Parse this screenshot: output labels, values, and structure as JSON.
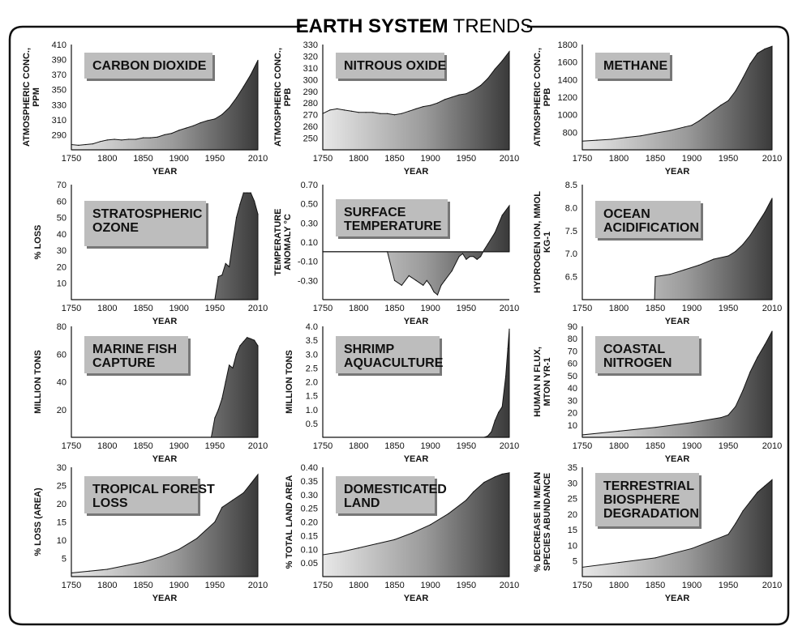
{
  "title_bold": "EARTH SYSTEM",
  "title_light": "TRENDS",
  "colors": {
    "fill_light": "#e8e8e8",
    "fill_dark": "#3a3a3a",
    "label_box": "#bdbdbd",
    "frame": "#111111"
  },
  "chart_data": [
    {
      "id": "co2",
      "type": "area",
      "title": [
        "CARBON DIOXIDE"
      ],
      "ylabel": [
        "ATMOSPHERIC CONC.,",
        "PPM"
      ],
      "xlabel": "YEAR",
      "xlim": [
        1750,
        2010
      ],
      "xticks": [
        1750,
        1800,
        1850,
        1900,
        1950,
        2010
      ],
      "ylim": [
        270,
        410
      ],
      "yticks": [
        290,
        310,
        330,
        350,
        370,
        390,
        410
      ],
      "x": [
        1750,
        1760,
        1770,
        1780,
        1790,
        1800,
        1810,
        1820,
        1830,
        1840,
        1850,
        1860,
        1870,
        1880,
        1890,
        1900,
        1910,
        1920,
        1930,
        1940,
        1950,
        1960,
        1970,
        1980,
        1990,
        2000,
        2010
      ],
      "y": [
        277,
        276,
        277,
        278,
        281,
        283,
        284,
        283,
        284,
        284,
        286,
        286,
        287,
        290,
        292,
        296,
        299,
        302,
        306,
        309,
        311,
        317,
        326,
        339,
        354,
        370,
        389
      ]
    },
    {
      "id": "n2o",
      "type": "area",
      "title": [
        "NITROUS OXIDE"
      ],
      "ylabel": [
        "ATMOSPHERIC CONC.,",
        "PPB"
      ],
      "xlabel": "YEAR",
      "xlim": [
        1750,
        2010
      ],
      "xticks": [
        1750,
        1800,
        1850,
        1900,
        1950,
        2010
      ],
      "ylim": [
        240,
        330
      ],
      "yticks": [
        250,
        260,
        270,
        280,
        290,
        300,
        310,
        320,
        330
      ],
      "x": [
        1750,
        1760,
        1770,
        1780,
        1790,
        1800,
        1810,
        1820,
        1830,
        1840,
        1850,
        1860,
        1870,
        1880,
        1890,
        1900,
        1910,
        1920,
        1930,
        1940,
        1950,
        1960,
        1970,
        1980,
        1990,
        2000,
        2010
      ],
      "y": [
        271,
        274,
        275,
        274,
        273,
        272,
        272,
        272,
        271,
        271,
        270,
        271,
        273,
        275,
        277,
        278,
        280,
        283,
        285,
        287,
        288,
        291,
        295,
        301,
        309,
        316,
        324
      ]
    },
    {
      "id": "ch4",
      "type": "area",
      "title": [
        "METHANE"
      ],
      "ylabel": [
        "ATMOSPHERIC CONC.,",
        "PPB"
      ],
      "xlabel": "YEAR",
      "xlim": [
        1750,
        2010
      ],
      "xticks": [
        1750,
        1800,
        1850,
        1900,
        1950,
        2010
      ],
      "ylim": [
        600,
        1800
      ],
      "yticks": [
        800,
        1000,
        1200,
        1400,
        1600,
        1800
      ],
      "x": [
        1750,
        1770,
        1790,
        1810,
        1830,
        1850,
        1870,
        1890,
        1900,
        1910,
        1920,
        1930,
        1940,
        1950,
        1960,
        1970,
        1980,
        1990,
        2000,
        2010
      ],
      "y": [
        700,
        710,
        720,
        740,
        760,
        790,
        820,
        860,
        880,
        930,
        990,
        1050,
        1110,
        1160,
        1270,
        1420,
        1580,
        1700,
        1750,
        1780
      ]
    },
    {
      "id": "ozone",
      "type": "area",
      "title": [
        "STRATOSPHERIC",
        "OZONE"
      ],
      "ylabel": [
        "% LOSS"
      ],
      "xlabel": "YEAR",
      "xlim": [
        1750,
        2010
      ],
      "xticks": [
        1750,
        1800,
        1850,
        1900,
        1950,
        2010
      ],
      "ylim": [
        0,
        70
      ],
      "yticks": [
        10,
        20,
        30,
        40,
        50,
        60,
        70
      ],
      "x": [
        1750,
        1950,
        1955,
        1960,
        1965,
        1970,
        1975,
        1980,
        1985,
        1990,
        1995,
        2000,
        2005,
        2010
      ],
      "y": [
        0,
        0,
        14,
        15,
        22,
        20,
        35,
        50,
        58,
        65,
        65,
        65,
        60,
        52
      ]
    },
    {
      "id": "temp",
      "type": "area",
      "title": [
        "SURFACE",
        "TEMPERATURE"
      ],
      "ylabel": [
        "TEMPERATURE",
        "ANOMALY °C"
      ],
      "xlabel": "YEAR",
      "xlim": [
        1750,
        2010
      ],
      "xticks": [
        1750,
        1800,
        1850,
        1900,
        1950,
        2010
      ],
      "ylim": [
        -0.5,
        0.7
      ],
      "yticks": [
        -0.3,
        -0.1,
        0.1,
        0.3,
        0.5,
        0.7
      ],
      "baseline": 0,
      "x": [
        1750,
        1840,
        1850,
        1860,
        1870,
        1880,
        1890,
        1895,
        1900,
        1905,
        1910,
        1915,
        1920,
        1930,
        1940,
        1945,
        1950,
        1955,
        1960,
        1965,
        1970,
        1975,
        1980,
        1990,
        2000,
        2010
      ],
      "y": [
        0,
        0,
        -0.3,
        -0.35,
        -0.25,
        -0.3,
        -0.35,
        -0.3,
        -0.35,
        -0.42,
        -0.45,
        -0.35,
        -0.3,
        -0.2,
        -0.05,
        -0.02,
        -0.08,
        -0.05,
        -0.05,
        -0.08,
        -0.05,
        0.02,
        0.08,
        0.2,
        0.38,
        0.48
      ]
    },
    {
      "id": "acid",
      "type": "area",
      "title": [
        "OCEAN",
        "ACIDIFICATION"
      ],
      "ylabel": [
        "HYDROGEN ION, MMOL",
        "KG-1"
      ],
      "xlabel": "YEAR",
      "xlim": [
        1750,
        2010
      ],
      "xticks": [
        1750,
        1800,
        1850,
        1900,
        1950,
        2010
      ],
      "ylim": [
        6.0,
        8.5
      ],
      "yticks": [
        6.5,
        7.0,
        7.5,
        8.0,
        8.5
      ],
      "x": [
        1750,
        1849,
        1850,
        1870,
        1890,
        1910,
        1930,
        1950,
        1960,
        1970,
        1980,
        1990,
        2000,
        2010
      ],
      "y": [
        6.0,
        6.0,
        6.5,
        6.55,
        6.65,
        6.75,
        6.88,
        6.95,
        7.05,
        7.2,
        7.4,
        7.65,
        7.9,
        8.2
      ]
    },
    {
      "id": "fish",
      "type": "area",
      "title": [
        "MARINE FISH",
        "CAPTURE"
      ],
      "ylabel": [
        "MILLION TONS"
      ],
      "xlabel": "YEAR",
      "xlim": [
        1750,
        2010
      ],
      "xticks": [
        1750,
        1800,
        1850,
        1900,
        1950,
        2010
      ],
      "ylim": [
        0,
        80
      ],
      "yticks": [
        20,
        40,
        60,
        80
      ],
      "x": [
        1750,
        1945,
        1950,
        1955,
        1960,
        1965,
        1970,
        1975,
        1980,
        1985,
        1990,
        1995,
        2000,
        2005,
        2010
      ],
      "y": [
        0,
        0,
        14,
        20,
        28,
        40,
        52,
        50,
        60,
        66,
        69,
        72,
        71,
        70,
        66
      ]
    },
    {
      "id": "shrimp",
      "type": "area",
      "title": [
        "SHRIMP",
        "AQUACULTURE"
      ],
      "ylabel": [
        "MILLION TONS"
      ],
      "xlabel": "YEAR",
      "xlim": [
        1750,
        2010
      ],
      "xticks": [
        1750,
        1800,
        1850,
        1900,
        1950,
        2010
      ],
      "ylim": [
        0,
        4.0
      ],
      "yticks": [
        0.5,
        1.0,
        1.5,
        2.0,
        2.5,
        3.0,
        3.5,
        4.0
      ],
      "x": [
        1750,
        1975,
        1980,
        1985,
        1990,
        1995,
        2000,
        2005,
        2008,
        2010
      ],
      "y": [
        0,
        0,
        0.05,
        0.2,
        0.6,
        0.9,
        1.1,
        2.2,
        3.2,
        3.9
      ]
    },
    {
      "id": "nitrogen",
      "type": "area",
      "title": [
        "COASTAL",
        "NITROGEN"
      ],
      "ylabel": [
        "HUMAN N FLUX,",
        "MTON YR-1"
      ],
      "xlabel": "YEAR",
      "xlim": [
        1750,
        2010
      ],
      "xticks": [
        1750,
        1800,
        1850,
        1900,
        1950,
        2010
      ],
      "ylim": [
        0,
        90
      ],
      "yticks": [
        10,
        20,
        30,
        40,
        50,
        60,
        70,
        80,
        90
      ],
      "x": [
        1750,
        1800,
        1850,
        1900,
        1940,
        1950,
        1960,
        1970,
        1980,
        1990,
        2000,
        2010
      ],
      "y": [
        2,
        5,
        8,
        12,
        16,
        18,
        25,
        38,
        53,
        65,
        75,
        86
      ]
    },
    {
      "id": "forest",
      "type": "area",
      "title": [
        "TROPICAL FOREST",
        "LOSS"
      ],
      "ylabel": [
        "% LOSS (AREA)"
      ],
      "xlabel": "YEAR",
      "xlim": [
        1750,
        2010
      ],
      "xticks": [
        1750,
        1800,
        1850,
        1900,
        1950,
        2010
      ],
      "ylim": [
        0,
        30
      ],
      "yticks": [
        5,
        10,
        15,
        20,
        25,
        30
      ],
      "x": [
        1750,
        1775,
        1800,
        1825,
        1850,
        1875,
        1900,
        1925,
        1950,
        1960,
        1975,
        1990,
        2000,
        2010
      ],
      "y": [
        1,
        1.5,
        2,
        3,
        4,
        5.5,
        7.5,
        10.5,
        15,
        19,
        21,
        23,
        25.5,
        28
      ]
    },
    {
      "id": "land",
      "type": "area",
      "title": [
        "DOMESTICATED",
        "LAND"
      ],
      "ylabel": [
        "% TOTAL LAND AREA"
      ],
      "xlabel": "YEAR",
      "xlim": [
        1750,
        2010
      ],
      "xticks": [
        1750,
        1800,
        1850,
        1900,
        1950,
        2010
      ],
      "ylim": [
        0,
        0.4
      ],
      "yticks": [
        0.05,
        0.1,
        0.15,
        0.2,
        0.25,
        0.3,
        0.35,
        0.4
      ],
      "x": [
        1750,
        1775,
        1800,
        1825,
        1850,
        1875,
        1900,
        1925,
        1950,
        1960,
        1975,
        1990,
        2000,
        2010
      ],
      "y": [
        0.08,
        0.09,
        0.105,
        0.12,
        0.135,
        0.16,
        0.19,
        0.23,
        0.28,
        0.31,
        0.345,
        0.365,
        0.375,
        0.38
      ]
    },
    {
      "id": "biosphere",
      "type": "area",
      "title": [
        "TERRESTRIAL",
        "BIOSPHERE",
        "DEGRADATION"
      ],
      "ylabel": [
        "% DECREASE IN MEAN",
        "SPECIES ABUNDANCE"
      ],
      "xlabel": "YEAR",
      "xlim": [
        1750,
        2010
      ],
      "xticks": [
        1750,
        1800,
        1850,
        1900,
        1950,
        2010
      ],
      "ylim": [
        0,
        35
      ],
      "yticks": [
        5,
        10,
        15,
        20,
        25,
        30,
        35
      ],
      "x": [
        1750,
        1800,
        1850,
        1900,
        1950,
        1960,
        1970,
        1980,
        1990,
        2000,
        2010
      ],
      "y": [
        3,
        4.5,
        6,
        9,
        13.5,
        17,
        21,
        24,
        27,
        29,
        31
      ]
    }
  ]
}
